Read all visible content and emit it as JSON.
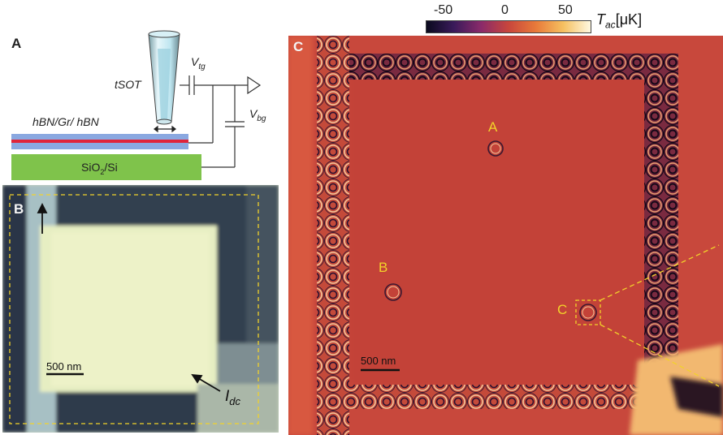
{
  "panel_a": {
    "letter": "A",
    "tip_label": "tSOT",
    "top_gate_label": "V",
    "top_gate_sub": "tg",
    "back_gate_label": "V",
    "back_gate_sub": "bg",
    "stack_label": "hBN/Gr/ hBN",
    "substrate_label": "SiO",
    "substrate_sub": "2",
    "substrate_suffix": "/Si",
    "colors": {
      "hbn": "#8aa8e0",
      "graphene": "#e0243a",
      "substrate": "#7fc34b",
      "tip": "#bfe6f0"
    }
  },
  "panel_b": {
    "letter": "B",
    "scalebar_label": "500 nm",
    "current_label": "I",
    "current_sub": "dc",
    "colors": {
      "film": "#e8efc0",
      "dark": "#2f3a4c",
      "edge": "#8fb0b8",
      "dash": "#f2d22a"
    }
  },
  "panel_c": {
    "letter": "C",
    "scalebar_label": "500 nm",
    "markers": [
      {
        "label": "A"
      },
      {
        "label": "B"
      },
      {
        "label": "C"
      }
    ],
    "colors": {
      "background": "#c8463c",
      "accent": "#f2d22a"
    }
  },
  "colorbar": {
    "ticks": [
      "-50",
      "0",
      "50"
    ],
    "label": "T",
    "label_sub": "ac",
    "label_unit": "[μK]",
    "stops": [
      "#0a0a1e",
      "#3a1a5a",
      "#8a2a6a",
      "#c8463c",
      "#e87a3a",
      "#f5c060",
      "#fff8e0"
    ]
  }
}
